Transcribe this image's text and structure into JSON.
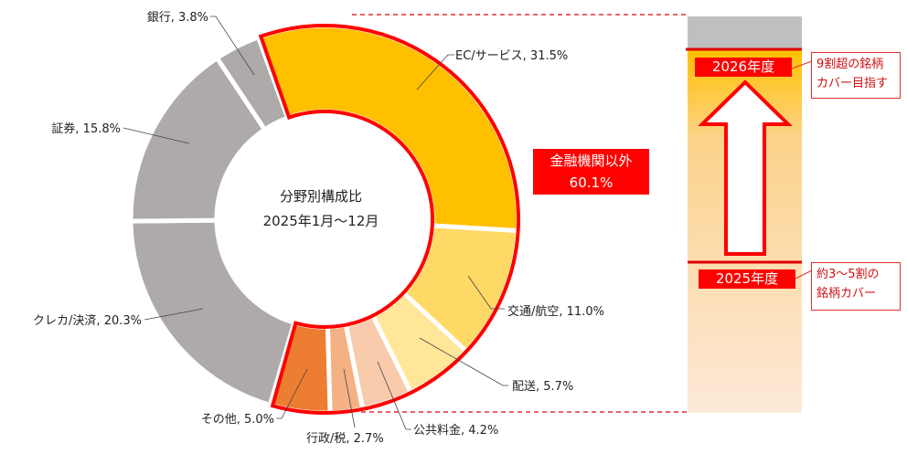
{
  "chart_data": {
    "type": "pie",
    "variant": "donut",
    "title": "分野別構成比",
    "subtitle": "2025年1月〜12月",
    "categories": [
      "EC/サービス",
      "交通/航空",
      "配送",
      "公共料金",
      "行政/税",
      "その他",
      "クレカ/決済",
      "証券",
      "銀行"
    ],
    "values": [
      31.5,
      11.0,
      5.7,
      4.2,
      2.7,
      5.0,
      20.3,
      15.8,
      3.8
    ],
    "labels": [
      "EC/サービス, 31.5%",
      "交通/航空, 11.0%",
      "配送, 5.7%",
      "公共料金, 4.2%",
      "行政/税, 2.7%",
      "その他, 5.0%",
      "クレカ/決済, 20.3%",
      "証券, 15.8%",
      "銀行, 3.8%"
    ],
    "colors": [
      "#FFC000",
      "#FFD966",
      "#FFE699",
      "#F8CBAD",
      "#F4B183",
      "#ED7D31",
      "#AEAAAA",
      "#AEAAAA",
      "#AEAAAA"
    ],
    "highlight_group": {
      "label": "金融機関以外",
      "value": "60.1%",
      "color": "#FF0000"
    }
  },
  "side_panel": {
    "top_year": "2026年度",
    "top_note": [
      "9割超の銘柄",
      "カバー目指す"
    ],
    "bottom_year": "2025年度",
    "bottom_note": [
      "約3〜5割の",
      "銘柄カバー"
    ],
    "gray_color": "#BFBFBF",
    "gradient_top": "#FFC000",
    "gradient_bottom": "#FDE9D9"
  }
}
